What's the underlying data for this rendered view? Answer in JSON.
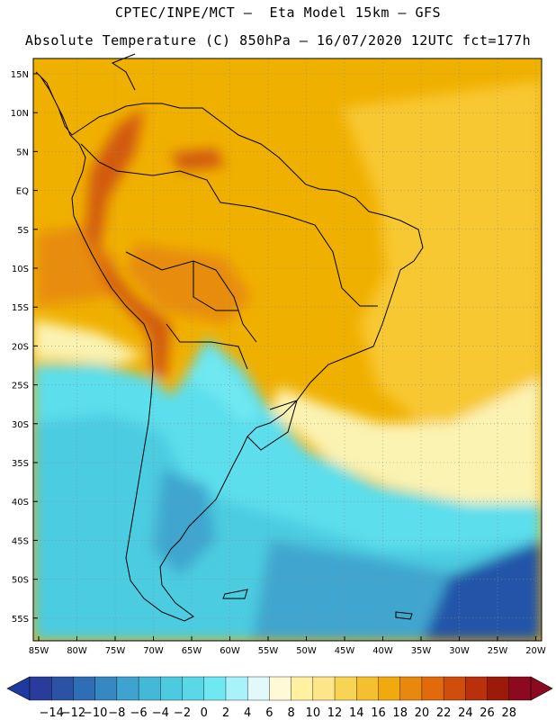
{
  "header": {
    "title_line1": "CPTEC/INPE/MCT –  Eta Model 15km – GFS",
    "title_line2": "Absolute Temperature (C) 850hPa – 16/07/2020 12UTC fct=177h"
  },
  "map": {
    "lat_labels": [
      "15N",
      "10N",
      "5N",
      "EQ",
      "5S",
      "10S",
      "15S",
      "20S",
      "25S",
      "30S",
      "35S",
      "40S",
      "45S",
      "50S",
      "55S"
    ],
    "lon_labels": [
      "85W",
      "80W",
      "75W",
      "70W",
      "65W",
      "60W",
      "55W",
      "50W",
      "45W",
      "40W",
      "35W",
      "30W",
      "25W",
      "20W"
    ],
    "gridlines": true,
    "colors": {
      "tropical_warm": "#f0b000",
      "tropical_hot": "#e88c10",
      "andes_hot": "#d25a0a",
      "subtropical": "#f8c830",
      "warm_mid": "#f5d860",
      "transition": "#fbf3b2",
      "cold_cyan": "#5cdeec",
      "cold_light": "#4ccce0",
      "cold_mid": "#3fa6cf",
      "cold_deep": "#3080bf",
      "cold_deepest": "#2454a8"
    }
  },
  "colorbar": {
    "labels": [
      "-14",
      "-12",
      "-10",
      "-8",
      "-6",
      "-4",
      "-2",
      "0",
      "2",
      "4",
      "6",
      "8",
      "10",
      "12",
      "14",
      "16",
      "18",
      "20",
      "22",
      "24",
      "26",
      "28"
    ],
    "low_color": "#1e3aa0",
    "high_color": "#8c0a20",
    "colors": [
      "#2a3c9a",
      "#2c52a6",
      "#2f6db4",
      "#3787c2",
      "#3ea3cf",
      "#44b8d7",
      "#4ecae0",
      "#5ad8e8",
      "#6fe8f2",
      "#a8f2fa",
      "#e2f9fc",
      "#fff9d8",
      "#fff1a0",
      "#fde68a",
      "#f8d455",
      "#f5c030",
      "#f0aa10",
      "#e8880e",
      "#e06a0c",
      "#d04e0c",
      "#b8300c",
      "#9c1a0a",
      "#8c0a20"
    ]
  }
}
